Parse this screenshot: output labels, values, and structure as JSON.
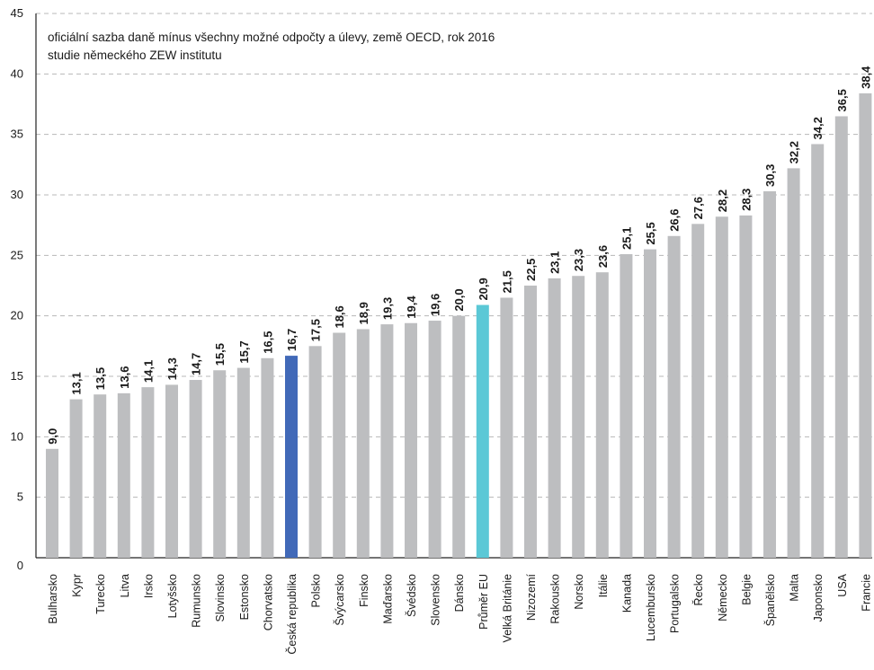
{
  "chart_data": {
    "type": "bar",
    "annotations": [
      "oficiální sazba daně mínus všechny možné odpočty a úlevy, země OECD, rok 2016",
      "studie německého ZEW institutu"
    ],
    "categories": [
      "Bulharsko",
      "Kypr",
      "Turecko",
      "Litva",
      "Irsko",
      "Lotyšsko",
      "Rumunsko",
      "Slovinsko",
      "Estonsko",
      "Chorvatsko",
      "Česká republika",
      "Polsko",
      "Švýcarsko",
      "Finsko",
      "Maďarsko",
      "Švédsko",
      "Slovensko",
      "Dánsko",
      "Průměr EU",
      "Velká Británie",
      "Nizozemí",
      "Rakousko",
      "Norsko",
      "Itálie",
      "Kanada",
      "Lucembursko",
      "Portugalsko",
      "Řecko",
      "Německo",
      "Belgie",
      "Španělsko",
      "Malta",
      "Japonsko",
      "USA",
      "Francie"
    ],
    "values": [
      9.0,
      13.1,
      13.5,
      13.6,
      14.1,
      14.3,
      14.7,
      15.5,
      15.7,
      16.5,
      16.7,
      17.5,
      18.6,
      18.9,
      19.3,
      19.4,
      19.6,
      20.0,
      20.9,
      21.5,
      22.5,
      23.1,
      23.3,
      23.6,
      25.1,
      25.5,
      26.6,
      27.6,
      28.2,
      28.3,
      30.3,
      32.2,
      34.2,
      36.5,
      38.4
    ],
    "value_labels": [
      "9,0",
      "13,1",
      "13,5",
      "13,6",
      "14,1",
      "14,3",
      "14,7",
      "15,5",
      "15,7",
      "16,5",
      "16,7",
      "17,5",
      "18,6",
      "18,9",
      "19,3",
      "19,4",
      "19,6",
      "20,0",
      "20,9",
      "21,5",
      "22,5",
      "23,1",
      "23,3",
      "23,6",
      "25,1",
      "25,5",
      "26,6",
      "27,6",
      "28,2",
      "28,3",
      "30,3",
      "32,2",
      "34,2",
      "36,5",
      "38,4"
    ],
    "ylim": [
      0,
      45
    ],
    "yticks": [
      0,
      5,
      10,
      15,
      20,
      25,
      30,
      35,
      40,
      45
    ],
    "grid": true,
    "colors": {
      "default": "#bdbec0",
      "Česká republika": "#4169b8",
      "Průměr EU": "#5bc8d6",
      "grid": "#b8b8b8",
      "axis": "#222222",
      "text": "#1a1a1a"
    }
  }
}
